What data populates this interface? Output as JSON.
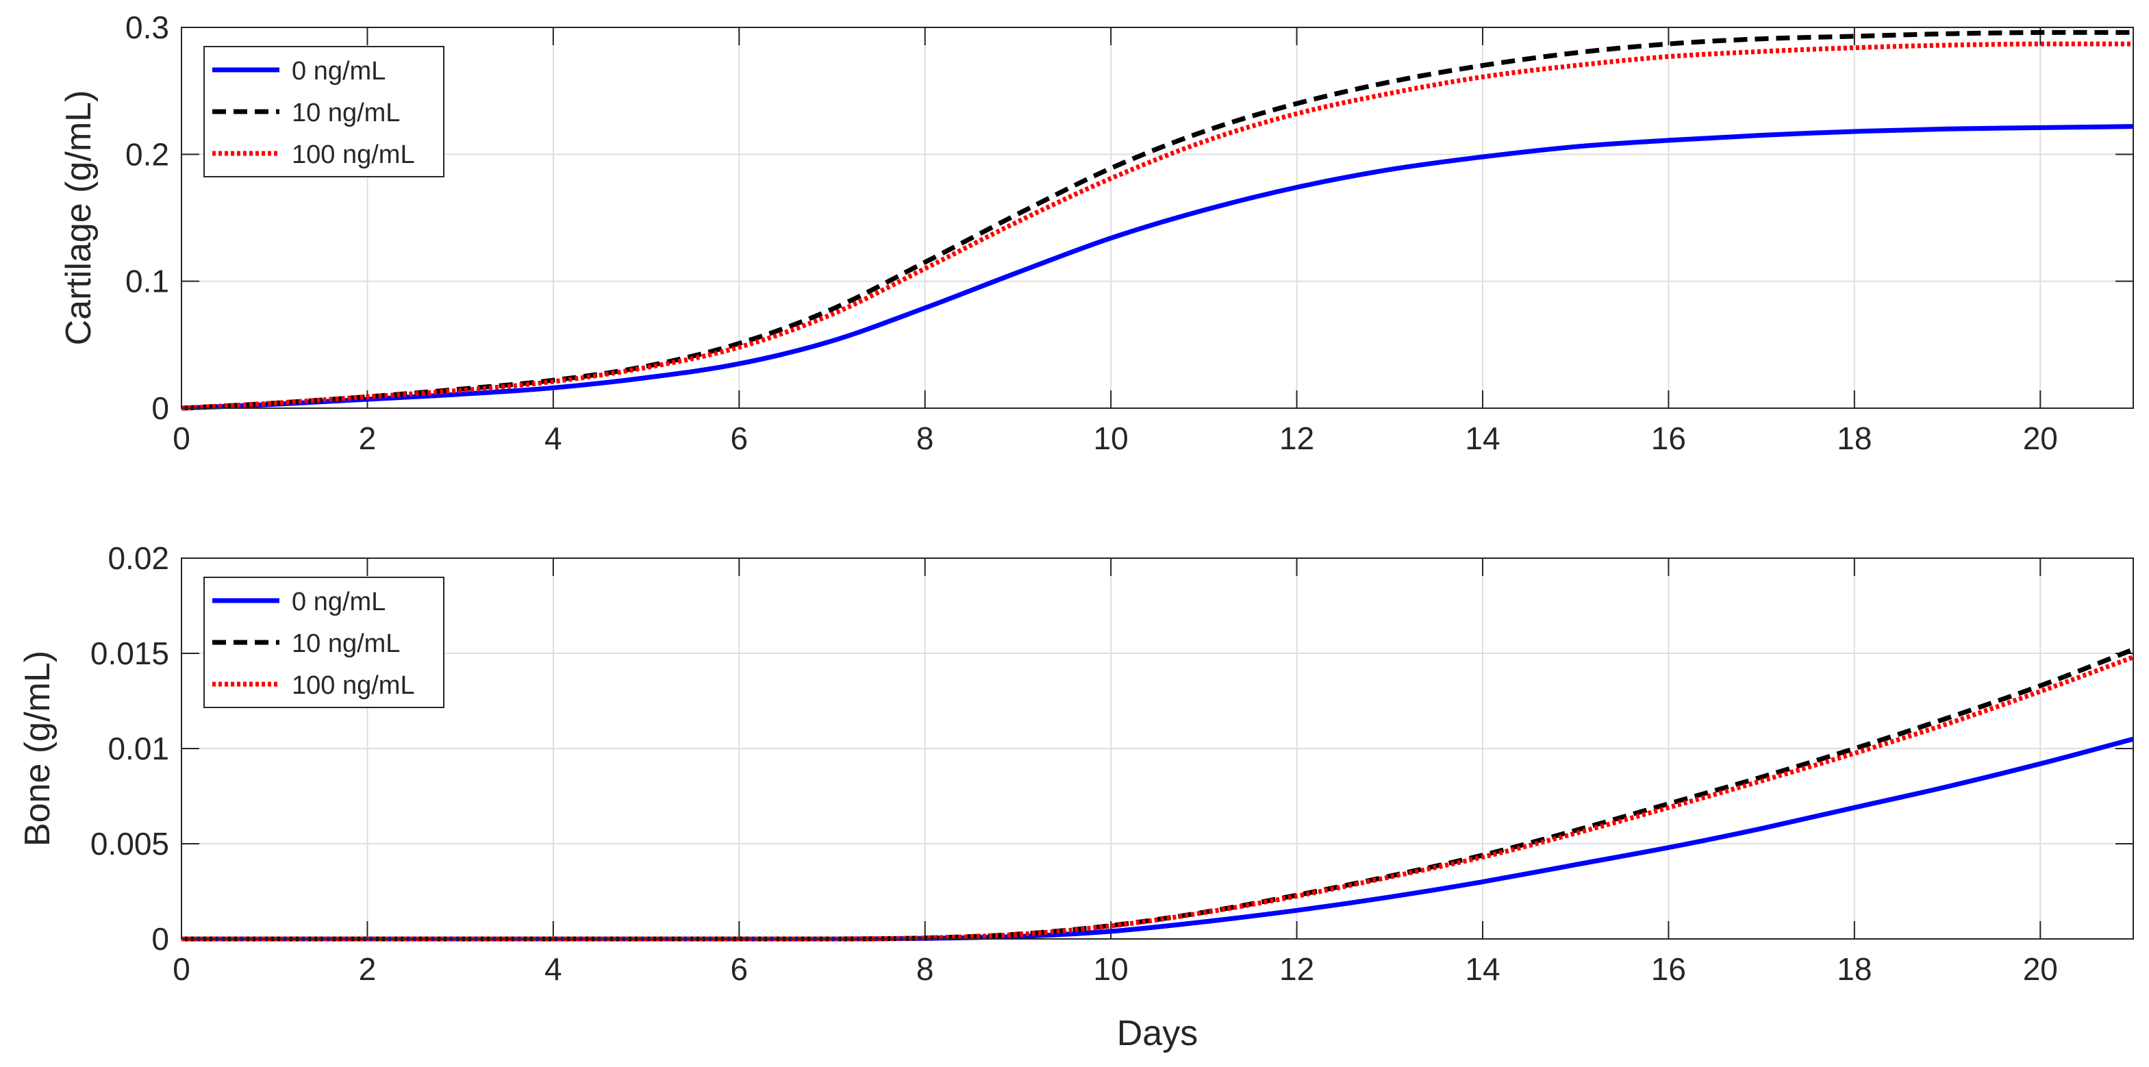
{
  "chart_data": [
    {
      "type": "line",
      "title": "",
      "xlabel": "",
      "ylabel": "Cartilage (g/mL)",
      "xlim": [
        0,
        21
      ],
      "ylim": [
        0,
        0.3
      ],
      "xticks": [
        0,
        2,
        4,
        6,
        8,
        10,
        12,
        14,
        16,
        18,
        20
      ],
      "xtick_labels": [
        "0",
        "2",
        "4",
        "6",
        "8",
        "10",
        "12",
        "14",
        "16",
        "18",
        "20"
      ],
      "yticks": [
        0,
        0.1,
        0.2,
        0.3
      ],
      "ytick_labels": [
        "0",
        "0.1",
        "0.2",
        "0.3"
      ],
      "grid": true,
      "legend_position": "top-left",
      "x": [
        0,
        1,
        2,
        3,
        4,
        5,
        6,
        7,
        8,
        9,
        10,
        11,
        12,
        13,
        14,
        15,
        16,
        17,
        18,
        19,
        20,
        21
      ],
      "series": [
        {
          "name": "0 ng/mL",
          "color": "#0000ff",
          "dash": "solid",
          "values": [
            0,
            0.003,
            0.007,
            0.011,
            0.016,
            0.024,
            0.035,
            0.053,
            0.079,
            0.107,
            0.134,
            0.156,
            0.174,
            0.188,
            0.198,
            0.206,
            0.211,
            0.215,
            0.218,
            0.22,
            0.221,
            0.222
          ]
        },
        {
          "name": "10 ng/mL",
          "color": "#000000",
          "dash": "dashed",
          "values": [
            0,
            0.004,
            0.009,
            0.015,
            0.022,
            0.033,
            0.051,
            0.078,
            0.115,
            0.153,
            0.189,
            0.218,
            0.24,
            0.257,
            0.27,
            0.28,
            0.287,
            0.291,
            0.293,
            0.295,
            0.296,
            0.296
          ]
        },
        {
          "name": "100 ng/mL",
          "color": "#ff0000",
          "dash": "dotted",
          "values": [
            0,
            0.004,
            0.009,
            0.014,
            0.021,
            0.032,
            0.048,
            0.074,
            0.11,
            0.147,
            0.181,
            0.21,
            0.232,
            0.248,
            0.261,
            0.27,
            0.277,
            0.281,
            0.284,
            0.286,
            0.287,
            0.287
          ]
        }
      ]
    },
    {
      "type": "line",
      "title": "",
      "xlabel": "Days",
      "ylabel": "Bone (g/mL)",
      "xlim": [
        0,
        21
      ],
      "ylim": [
        0,
        0.02
      ],
      "xticks": [
        0,
        2,
        4,
        6,
        8,
        10,
        12,
        14,
        16,
        18,
        20
      ],
      "xtick_labels": [
        "0",
        "2",
        "4",
        "6",
        "8",
        "10",
        "12",
        "14",
        "16",
        "18",
        "20"
      ],
      "yticks": [
        0,
        0.005,
        0.01,
        0.015,
        0.02
      ],
      "ytick_labels": [
        "0",
        "0.005",
        "0.01",
        "0.015",
        "0.02"
      ],
      "grid": true,
      "legend_position": "top-left",
      "x": [
        0,
        1,
        2,
        3,
        4,
        5,
        6,
        7,
        8,
        9,
        10,
        11,
        12,
        13,
        14,
        15,
        16,
        17,
        18,
        19,
        20,
        21
      ],
      "series": [
        {
          "name": "0 ng/mL",
          "color": "#0000ff",
          "dash": "solid",
          "values": [
            0,
            0,
            0,
            0,
            0,
            0,
            0,
            0,
            3e-05,
            0.00013,
            0.0004,
            0.0009,
            0.0015,
            0.0022,
            0.003,
            0.0039,
            0.0048,
            0.0058,
            0.0069,
            0.008,
            0.0092,
            0.0105
          ]
        },
        {
          "name": "10 ng/mL",
          "color": "#000000",
          "dash": "dashed",
          "values": [
            0,
            0,
            0,
            0,
            0,
            0,
            0,
            0,
            5e-05,
            0.00025,
            0.0007,
            0.0014,
            0.0023,
            0.0033,
            0.0044,
            0.0057,
            0.0071,
            0.0085,
            0.01,
            0.0116,
            0.0133,
            0.0152
          ]
        },
        {
          "name": "100 ng/mL",
          "color": "#ff0000",
          "dash": "dotted",
          "values": [
            0,
            0,
            0,
            0,
            0,
            0,
            0,
            0,
            5e-05,
            0.00024,
            0.00068,
            0.00138,
            0.00225,
            0.00325,
            0.0043,
            0.00555,
            0.0069,
            0.0083,
            0.00975,
            0.0113,
            0.013,
            0.0148
          ]
        }
      ]
    }
  ]
}
